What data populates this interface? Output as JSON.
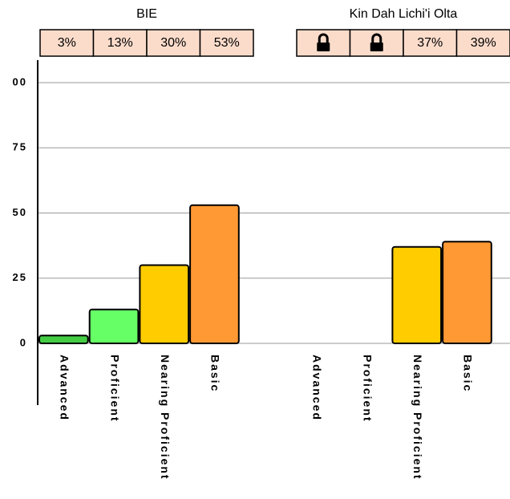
{
  "chart_data": {
    "type": "bar",
    "categories": [
      "Advanced",
      "Proficient",
      "Nearing Proficient",
      "Basic"
    ],
    "colors": [
      "#44cc44",
      "#66ff66",
      "#ffcc00",
      "#ff9933"
    ],
    "groups": [
      {
        "name": "BIE",
        "values": [
          3,
          13,
          30,
          53
        ],
        "value_labels": [
          "3%",
          "13%",
          "30%",
          "53%"
        ]
      },
      {
        "name": "Kin Dah Lichi'i Olta",
        "values": [
          null,
          null,
          37,
          39
        ],
        "value_labels": [
          null,
          null,
          "37%",
          "39%"
        ]
      }
    ],
    "ylim": [
      0,
      100
    ],
    "yticks": [
      {
        "value": 100,
        "label": "00"
      },
      75,
      50,
      25,
      0
    ],
    "grid": true
  }
}
